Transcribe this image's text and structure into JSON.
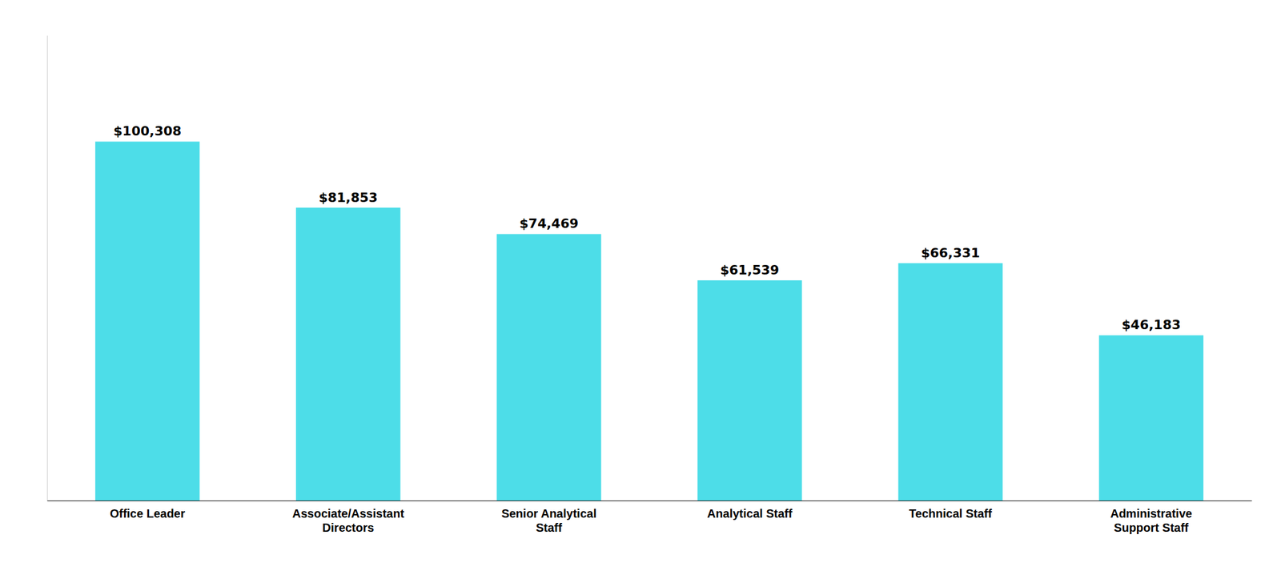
{
  "chart_data": {
    "type": "bar",
    "categories": [
      "Office Leader",
      "Associate/Assistant\nDirectors",
      "Senior Analytical\nStaff",
      "Analytical Staff",
      "Technical Staff",
      "Administrative\nSupport Staff"
    ],
    "values": [
      100308,
      81853,
      74469,
      61539,
      66331,
      46183
    ],
    "value_labels": [
      "$100,308",
      "$81,853",
      "$74,469",
      "$61,539",
      "$66,331",
      "$46,183"
    ],
    "color": "#4DDDE8",
    "ylim": [
      0,
      130000
    ],
    "data_labels": true,
    "tick_labels": "x",
    "grid": false
  }
}
